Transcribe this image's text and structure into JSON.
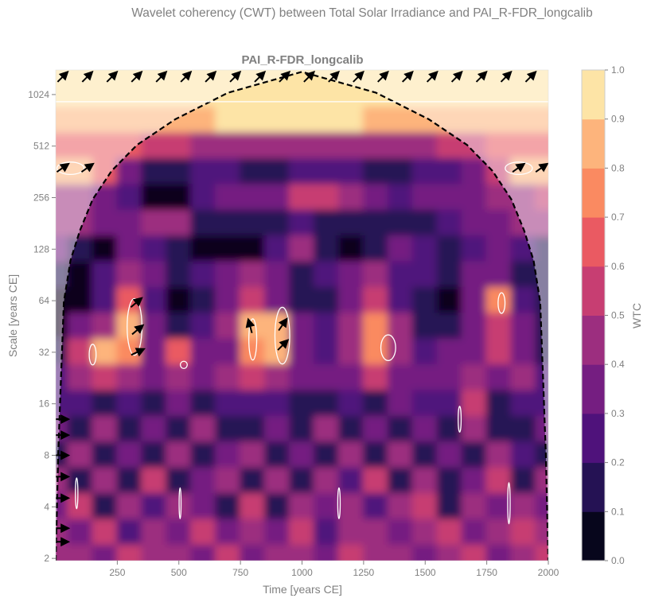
{
  "figure": {
    "suptitle": "Wavelet coherency (CWT) between Total Solar Irradiance and PAI_R-FDR_longcalib"
  },
  "chart_data": {
    "type": "heatmap",
    "title": "PAI_R-FDR_longcalib",
    "xlabel": "Time [years CE]",
    "ylabel": "Scale [years CE]",
    "xlim": [
      0,
      2000
    ],
    "ylim": [
      1.94,
      1425
    ],
    "yscale": "log2",
    "xticks": [
      250,
      500,
      750,
      1000,
      1250,
      1500,
      1750,
      2000
    ],
    "yticks": [
      2,
      4,
      8,
      16,
      32,
      64,
      128,
      256,
      512,
      1024
    ],
    "colorbar": {
      "label": "WTC",
      "ticks": [
        "0.0",
        "0.1",
        "0.2",
        "0.3",
        "0.4",
        "0.5",
        "0.6",
        "0.7",
        "0.8",
        "0.9",
        "1.0"
      ],
      "levels": 10,
      "colors": [
        "#07061c",
        "#251254",
        "#4f127b",
        "#751e81",
        "#9c2e7f",
        "#c73e72",
        "#ea5a62",
        "#fa8a61",
        "#fdb47c",
        "#fde4a6"
      ]
    },
    "colormap": "magma",
    "grid_years": [
      0,
      100,
      200,
      300,
      400,
      500,
      600,
      700,
      800,
      900,
      1000,
      1100,
      1200,
      1300,
      1400,
      1500,
      1600,
      1700,
      1800,
      1900,
      2000
    ],
    "grid_log2_scales": [
      10.5,
      10,
      9.5,
      9,
      8.5,
      8,
      7.5,
      7,
      6.5,
      6,
      5.5,
      5,
      4.5,
      4,
      3.5,
      3,
      2.5,
      2,
      1.5,
      1
    ],
    "coherence": [
      [
        0.95,
        0.95,
        0.95,
        0.95,
        0.95,
        0.95,
        0.95,
        0.95,
        0.95,
        0.95,
        0.95,
        0.95,
        0.95,
        0.95,
        0.95,
        0.95,
        0.95,
        0.95,
        0.95,
        0.95,
        0.95
      ],
      [
        0.92,
        0.92,
        0.92,
        0.92,
        0.92,
        0.92,
        0.92,
        0.92,
        0.92,
        0.93,
        0.93,
        0.93,
        0.92,
        0.92,
        0.92,
        0.92,
        0.92,
        0.92,
        0.92,
        0.92,
        0.92
      ],
      [
        0.85,
        0.85,
        0.85,
        0.8,
        0.82,
        0.85,
        0.88,
        0.9,
        0.9,
        0.9,
        0.92,
        0.9,
        0.9,
        0.88,
        0.85,
        0.82,
        0.8,
        0.85,
        0.85,
        0.85,
        0.85
      ],
      [
        0.65,
        0.65,
        0.6,
        0.6,
        0.55,
        0.5,
        0.45,
        0.45,
        0.4,
        0.4,
        0.45,
        0.45,
        0.4,
        0.4,
        0.4,
        0.45,
        0.5,
        0.55,
        0.6,
        0.65,
        0.65
      ],
      [
        0.85,
        0.85,
        0.6,
        0.3,
        0.15,
        0.15,
        0.2,
        0.2,
        0.15,
        0.15,
        0.2,
        0.2,
        0.2,
        0.15,
        0.15,
        0.2,
        0.25,
        0.3,
        0.5,
        0.85,
        0.85
      ],
      [
        0.45,
        0.45,
        0.35,
        0.2,
        0.05,
        0.05,
        0.25,
        0.3,
        0.3,
        0.35,
        0.5,
        0.55,
        0.4,
        0.3,
        0.25,
        0.3,
        0.35,
        0.35,
        0.4,
        0.45,
        0.5
      ],
      [
        0.4,
        0.4,
        0.3,
        0.35,
        0.45,
        0.4,
        0.15,
        0.1,
        0.1,
        0.15,
        0.2,
        0.15,
        0.15,
        0.1,
        0.1,
        0.15,
        0.2,
        0.3,
        0.35,
        0.4,
        0.4
      ],
      [
        0.3,
        0.1,
        0.05,
        0.3,
        0.25,
        0.15,
        0.05,
        0.05,
        0.05,
        0.2,
        0.4,
        0.1,
        0.05,
        0.15,
        0.3,
        0.2,
        0.15,
        0.25,
        0.3,
        0.2,
        0.1
      ],
      [
        0.1,
        0.05,
        0.2,
        0.45,
        0.3,
        0.1,
        0.25,
        0.3,
        0.4,
        0.3,
        0.15,
        0.2,
        0.35,
        0.4,
        0.25,
        0.2,
        0.1,
        0.3,
        0.35,
        0.15,
        0.1
      ],
      [
        0.05,
        0.05,
        0.2,
        0.6,
        0.2,
        0.05,
        0.15,
        0.3,
        0.5,
        0.3,
        0.1,
        0.15,
        0.3,
        0.5,
        0.25,
        0.1,
        0.05,
        0.35,
        0.75,
        0.25,
        0.1
      ],
      [
        0.05,
        0.3,
        0.4,
        0.8,
        0.35,
        0.1,
        0.2,
        0.4,
        0.8,
        0.85,
        0.3,
        0.2,
        0.4,
        0.7,
        0.4,
        0.1,
        0.15,
        0.3,
        0.5,
        0.3,
        0.1
      ],
      [
        0.1,
        0.5,
        0.85,
        0.75,
        0.35,
        0.6,
        0.3,
        0.3,
        0.75,
        0.8,
        0.3,
        0.2,
        0.4,
        0.75,
        0.45,
        0.2,
        0.3,
        0.35,
        0.55,
        0.3,
        0.1
      ],
      [
        0.2,
        0.4,
        0.5,
        0.4,
        0.3,
        0.4,
        0.3,
        0.4,
        0.5,
        0.4,
        0.3,
        0.35,
        0.3,
        0.5,
        0.35,
        0.3,
        0.35,
        0.4,
        0.3,
        0.4,
        0.2
      ],
      [
        0.25,
        0.2,
        0.1,
        0.25,
        0.15,
        0.3,
        0.1,
        0.25,
        0.2,
        0.25,
        0.15,
        0.1,
        0.25,
        0.15,
        0.35,
        0.2,
        0.25,
        0.55,
        0.15,
        0.25,
        0.2
      ],
      [
        0.3,
        0.15,
        0.45,
        0.1,
        0.3,
        0.1,
        0.4,
        0.15,
        0.1,
        0.35,
        0.15,
        0.4,
        0.1,
        0.3,
        0.15,
        0.35,
        0.1,
        0.4,
        0.15,
        0.1,
        0.3
      ],
      [
        0.15,
        0.4,
        0.1,
        0.35,
        0.15,
        0.45,
        0.1,
        0.3,
        0.4,
        0.15,
        0.35,
        0.1,
        0.4,
        0.15,
        0.45,
        0.1,
        0.3,
        0.15,
        0.4,
        0.2,
        0.15
      ],
      [
        0.45,
        0.15,
        0.4,
        0.1,
        0.5,
        0.15,
        0.35,
        0.4,
        0.15,
        0.45,
        0.1,
        0.4,
        0.2,
        0.5,
        0.15,
        0.4,
        0.1,
        0.35,
        0.5,
        0.15,
        0.4
      ],
      [
        0.3,
        0.5,
        0.15,
        0.45,
        0.2,
        0.4,
        0.3,
        0.15,
        0.5,
        0.15,
        0.4,
        0.3,
        0.45,
        0.2,
        0.4,
        0.5,
        0.15,
        0.45,
        0.3,
        0.4,
        0.35
      ],
      [
        0.4,
        0.3,
        0.5,
        0.2,
        0.45,
        0.35,
        0.5,
        0.3,
        0.4,
        0.35,
        0.5,
        0.2,
        0.4,
        0.45,
        0.3,
        0.4,
        0.5,
        0.3,
        0.4,
        0.5,
        0.4
      ],
      [
        0.45,
        0.4,
        0.35,
        0.5,
        0.4,
        0.45,
        0.3,
        0.5,
        0.35,
        0.4,
        0.45,
        0.35,
        0.5,
        0.4,
        0.45,
        0.35,
        0.4,
        0.5,
        0.35,
        0.45,
        0.5
      ]
    ],
    "cone_of_influence": [
      [
        0,
        1.94
      ],
      [
        10,
        8
      ],
      [
        20,
        20
      ],
      [
        33,
        63
      ],
      [
        60,
        110
      ],
      [
        98,
        164
      ],
      [
        150,
        250
      ],
      [
        227,
        367
      ],
      [
        330,
        520
      ],
      [
        485,
        734
      ],
      [
        700,
        1050
      ],
      [
        1000,
        1390
      ],
      [
        1300,
        1050
      ],
      [
        1515,
        734
      ],
      [
        1670,
        520
      ],
      [
        1773,
        367
      ],
      [
        1850,
        250
      ],
      [
        1902,
        164
      ],
      [
        1940,
        110
      ],
      [
        1967,
        63
      ],
      [
        1980,
        20
      ],
      [
        1990,
        8
      ],
      [
        2000,
        1.94
      ]
    ],
    "phase_arrows": [
      [
        26,
        1290,
        45
      ],
      [
        126,
        1290,
        45
      ],
      [
        226,
        1290,
        45
      ],
      [
        326,
        1290,
        45
      ],
      [
        426,
        1290,
        45
      ],
      [
        526,
        1290,
        45
      ],
      [
        626,
        1290,
        45
      ],
      [
        726,
        1290,
        45
      ],
      [
        826,
        1290,
        45
      ],
      [
        926,
        1290,
        45
      ],
      [
        1026,
        1290,
        45
      ],
      [
        1126,
        1290,
        45
      ],
      [
        1226,
        1290,
        45
      ],
      [
        1326,
        1290,
        45
      ],
      [
        1426,
        1290,
        45
      ],
      [
        1526,
        1290,
        45
      ],
      [
        1626,
        1290,
        45
      ],
      [
        1726,
        1290,
        45
      ],
      [
        1826,
        1290,
        45
      ],
      [
        1926,
        1290,
        45
      ],
      [
        26,
        380,
        35
      ],
      [
        126,
        380,
        35
      ],
      [
        1876,
        380,
        35
      ],
      [
        1970,
        380,
        35
      ],
      [
        325,
        62,
        40
      ],
      [
        330,
        43,
        40
      ],
      [
        330,
        32,
        25
      ],
      [
        790,
        45,
        105
      ],
      [
        920,
        46,
        55
      ],
      [
        920,
        35,
        45
      ],
      [
        20,
        13,
        0
      ],
      [
        20,
        10.5,
        0
      ],
      [
        20,
        8,
        0
      ],
      [
        20,
        6,
        0
      ],
      [
        20,
        4.5,
        0
      ],
      [
        20,
        3,
        0
      ],
      [
        20,
        2.5,
        0
      ]
    ],
    "significance_regions": [
      [
        320,
        45,
        30,
        0.55
      ],
      [
        150,
        31,
        14,
        0.2
      ],
      [
        520,
        27,
        14,
        0.07
      ],
      [
        800,
        38,
        16,
        0.4
      ],
      [
        920,
        40,
        30,
        0.55
      ],
      [
        1350,
        34,
        30,
        0.25
      ],
      [
        1810,
        62,
        14,
        0.2
      ],
      [
        1640,
        13,
        6,
        0.25
      ],
      [
        60,
        380,
        55,
        0.12
      ],
      [
        1880,
        380,
        55,
        0.12
      ],
      [
        85,
        4.8,
        5,
        0.3
      ],
      [
        505,
        4.2,
        4,
        0.3
      ],
      [
        1150,
        4.2,
        5,
        0.3
      ],
      [
        1840,
        4.2,
        5,
        0.4
      ]
    ]
  }
}
